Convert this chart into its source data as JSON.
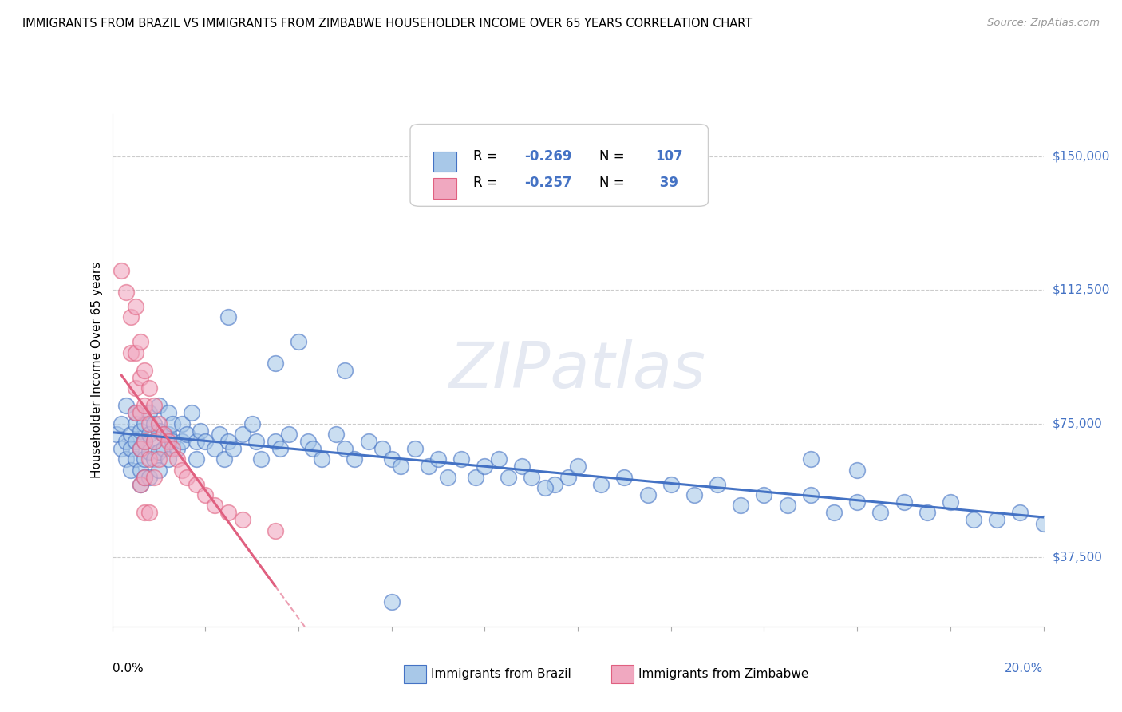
{
  "title": "IMMIGRANTS FROM BRAZIL VS IMMIGRANTS FROM ZIMBABWE HOUSEHOLDER INCOME OVER 65 YEARS CORRELATION CHART",
  "source": "Source: ZipAtlas.com",
  "ylabel": "Householder Income Over 65 years",
  "y_ticks": [
    37500,
    75000,
    112500,
    150000
  ],
  "y_tick_labels": [
    "$37,500",
    "$75,000",
    "$112,500",
    "$150,000"
  ],
  "xlim": [
    0.0,
    0.2
  ],
  "ylim": [
    18000,
    162000
  ],
  "brazil_color": "#a8c8e8",
  "zimbabwe_color": "#f0a8c0",
  "brazil_line_color": "#4472c4",
  "zimbabwe_line_color": "#e06080",
  "brazil_scatter": [
    [
      0.001,
      72000
    ],
    [
      0.002,
      68000
    ],
    [
      0.002,
      75000
    ],
    [
      0.003,
      70000
    ],
    [
      0.003,
      65000
    ],
    [
      0.003,
      80000
    ],
    [
      0.004,
      72000
    ],
    [
      0.004,
      68000
    ],
    [
      0.004,
      62000
    ],
    [
      0.005,
      75000
    ],
    [
      0.005,
      70000
    ],
    [
      0.005,
      65000
    ],
    [
      0.005,
      78000
    ],
    [
      0.006,
      73000
    ],
    [
      0.006,
      68000
    ],
    [
      0.006,
      62000
    ],
    [
      0.006,
      58000
    ],
    [
      0.007,
      75000
    ],
    [
      0.007,
      70000
    ],
    [
      0.007,
      65000
    ],
    [
      0.007,
      60000
    ],
    [
      0.008,
      78000
    ],
    [
      0.008,
      72000
    ],
    [
      0.008,
      67000
    ],
    [
      0.008,
      60000
    ],
    [
      0.009,
      75000
    ],
    [
      0.009,
      70000
    ],
    [
      0.009,
      65000
    ],
    [
      0.01,
      80000
    ],
    [
      0.01,
      73000
    ],
    [
      0.01,
      67000
    ],
    [
      0.01,
      62000
    ],
    [
      0.011,
      72000
    ],
    [
      0.011,
      68000
    ],
    [
      0.012,
      78000
    ],
    [
      0.012,
      72000
    ],
    [
      0.012,
      65000
    ],
    [
      0.013,
      75000
    ],
    [
      0.013,
      70000
    ],
    [
      0.014,
      68000
    ],
    [
      0.015,
      75000
    ],
    [
      0.015,
      70000
    ],
    [
      0.016,
      72000
    ],
    [
      0.017,
      78000
    ],
    [
      0.018,
      70000
    ],
    [
      0.018,
      65000
    ],
    [
      0.019,
      73000
    ],
    [
      0.02,
      70000
    ],
    [
      0.022,
      68000
    ],
    [
      0.023,
      72000
    ],
    [
      0.024,
      65000
    ],
    [
      0.025,
      70000
    ],
    [
      0.026,
      68000
    ],
    [
      0.028,
      72000
    ],
    [
      0.03,
      75000
    ],
    [
      0.031,
      70000
    ],
    [
      0.032,
      65000
    ],
    [
      0.035,
      70000
    ],
    [
      0.036,
      68000
    ],
    [
      0.038,
      72000
    ],
    [
      0.04,
      98000
    ],
    [
      0.042,
      70000
    ],
    [
      0.043,
      68000
    ],
    [
      0.045,
      65000
    ],
    [
      0.048,
      72000
    ],
    [
      0.05,
      68000
    ],
    [
      0.05,
      90000
    ],
    [
      0.052,
      65000
    ],
    [
      0.055,
      70000
    ],
    [
      0.058,
      68000
    ],
    [
      0.06,
      65000
    ],
    [
      0.062,
      63000
    ],
    [
      0.065,
      68000
    ],
    [
      0.068,
      63000
    ],
    [
      0.07,
      65000
    ],
    [
      0.072,
      60000
    ],
    [
      0.075,
      65000
    ],
    [
      0.078,
      60000
    ],
    [
      0.08,
      63000
    ],
    [
      0.083,
      65000
    ],
    [
      0.085,
      60000
    ],
    [
      0.088,
      63000
    ],
    [
      0.09,
      60000
    ],
    [
      0.025,
      105000
    ],
    [
      0.035,
      92000
    ],
    [
      0.095,
      58000
    ],
    [
      0.098,
      60000
    ],
    [
      0.1,
      63000
    ],
    [
      0.105,
      58000
    ],
    [
      0.11,
      60000
    ],
    [
      0.115,
      55000
    ],
    [
      0.12,
      58000
    ],
    [
      0.125,
      55000
    ],
    [
      0.13,
      58000
    ],
    [
      0.135,
      52000
    ],
    [
      0.14,
      55000
    ],
    [
      0.145,
      52000
    ],
    [
      0.15,
      55000
    ],
    [
      0.155,
      50000
    ],
    [
      0.16,
      53000
    ],
    [
      0.165,
      50000
    ],
    [
      0.17,
      53000
    ],
    [
      0.175,
      50000
    ],
    [
      0.18,
      53000
    ],
    [
      0.06,
      25000
    ],
    [
      0.19,
      48000
    ],
    [
      0.195,
      50000
    ],
    [
      0.2,
      47000
    ],
    [
      0.185,
      48000
    ],
    [
      0.093,
      57000
    ],
    [
      0.15,
      65000
    ],
    [
      0.16,
      62000
    ]
  ],
  "zimbabwe_scatter": [
    [
      0.002,
      118000
    ],
    [
      0.003,
      112000
    ],
    [
      0.004,
      105000
    ],
    [
      0.004,
      95000
    ],
    [
      0.005,
      108000
    ],
    [
      0.005,
      95000
    ],
    [
      0.005,
      85000
    ],
    [
      0.005,
      78000
    ],
    [
      0.006,
      98000
    ],
    [
      0.006,
      88000
    ],
    [
      0.006,
      78000
    ],
    [
      0.006,
      68000
    ],
    [
      0.006,
      58000
    ],
    [
      0.007,
      90000
    ],
    [
      0.007,
      80000
    ],
    [
      0.007,
      70000
    ],
    [
      0.007,
      60000
    ],
    [
      0.007,
      50000
    ],
    [
      0.008,
      85000
    ],
    [
      0.008,
      75000
    ],
    [
      0.008,
      65000
    ],
    [
      0.008,
      50000
    ],
    [
      0.009,
      80000
    ],
    [
      0.009,
      70000
    ],
    [
      0.009,
      60000
    ],
    [
      0.01,
      75000
    ],
    [
      0.01,
      65000
    ],
    [
      0.011,
      72000
    ],
    [
      0.012,
      70000
    ],
    [
      0.013,
      68000
    ],
    [
      0.014,
      65000
    ],
    [
      0.015,
      62000
    ],
    [
      0.016,
      60000
    ],
    [
      0.018,
      58000
    ],
    [
      0.02,
      55000
    ],
    [
      0.022,
      52000
    ],
    [
      0.025,
      50000
    ],
    [
      0.028,
      48000
    ],
    [
      0.035,
      45000
    ]
  ]
}
